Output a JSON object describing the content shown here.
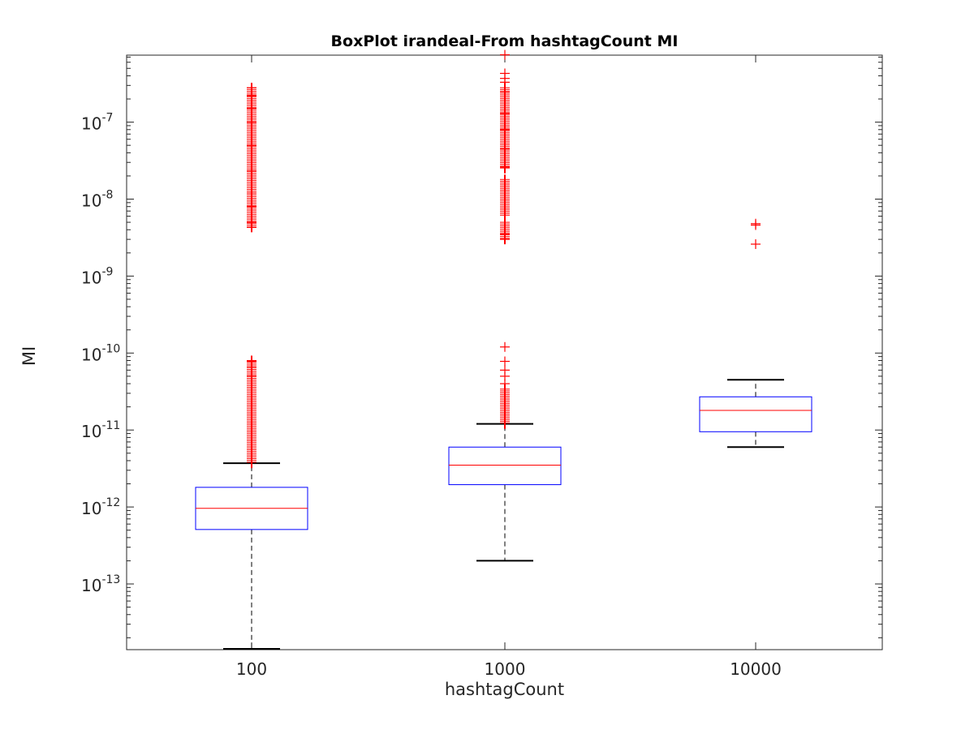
{
  "chart_data": {
    "type": "boxplot",
    "title": "BoxPlot irandeal-From hashtagCount MI",
    "xlabel": "hashtagCount",
    "ylabel": "MI",
    "y_scale": "log",
    "ylim": [
      1.3e-14,
      8e-07
    ],
    "y_ticks": [
      {
        "base": "10",
        "exp": "-13",
        "value": 1e-13
      },
      {
        "base": "10",
        "exp": "-12",
        "value": 1e-12
      },
      {
        "base": "10",
        "exp": "-11",
        "value": 1e-11
      },
      {
        "base": "10",
        "exp": "-10",
        "value": 1e-10
      },
      {
        "base": "10",
        "exp": "-9",
        "value": 1e-09
      },
      {
        "base": "10",
        "exp": "-8",
        "value": 1e-08
      },
      {
        "base": "10",
        "exp": "-7",
        "value": 1e-07
      }
    ],
    "categories": [
      "100",
      "1000",
      "10000"
    ],
    "boxes": [
      {
        "category": "100",
        "whisker_low": 1.3e-14,
        "q1": 5.1e-13,
        "median": 9.6e-13,
        "q3": 1.8e-12,
        "whisker_high": 3.7e-12,
        "outliers_dense": [
          [
            3.7e-12,
            8e-11
          ],
          [
            4.3e-09,
            2.8e-07
          ]
        ],
        "outliers": [
          5e-11,
          6.5e-11,
          7.8e-11,
          4.3e-09,
          5e-09,
          8e-09,
          1.2e-08,
          2.3e-08,
          5e-08,
          1e-07,
          1.5e-07,
          2.2e-07,
          2.8e-07
        ]
      },
      {
        "category": "1000",
        "whisker_low": 2e-13,
        "q1": 1.95e-12,
        "median": 3.5e-12,
        "q3": 6e-12,
        "whisker_high": 1.2e-11,
        "outliers_dense": [
          [
            1.2e-11,
            3.4e-11
          ],
          [
            3e-09,
            5e-09
          ],
          [
            6e-09,
            1.8e-08
          ],
          [
            2.5e-08,
            2.8e-07
          ]
        ],
        "outliers": [
          4e-11,
          5e-11,
          6e-11,
          7.8e-11,
          1.2e-10,
          3e-09,
          3.5e-09,
          2.6e-08,
          4.5e-08,
          8e-08,
          1.3e-07,
          2.5e-07,
          3.3e-07,
          3.7e-07,
          4.3e-07,
          7.5e-07
        ]
      },
      {
        "category": "10000",
        "whisker_low": 6e-12,
        "q1": 9.5e-12,
        "median": 1.8e-11,
        "q3": 2.7e-11,
        "whisker_high": 4.5e-11,
        "outliers_dense": [],
        "outliers": [
          2.6e-09,
          4.6e-09,
          4.8e-09
        ]
      }
    ],
    "colors": {
      "box": "#0000ff",
      "median": "#ff0000",
      "outlier": "#ff0000",
      "whisker": "#000000",
      "axis": "#262626"
    },
    "grid": false,
    "legend": "none"
  }
}
